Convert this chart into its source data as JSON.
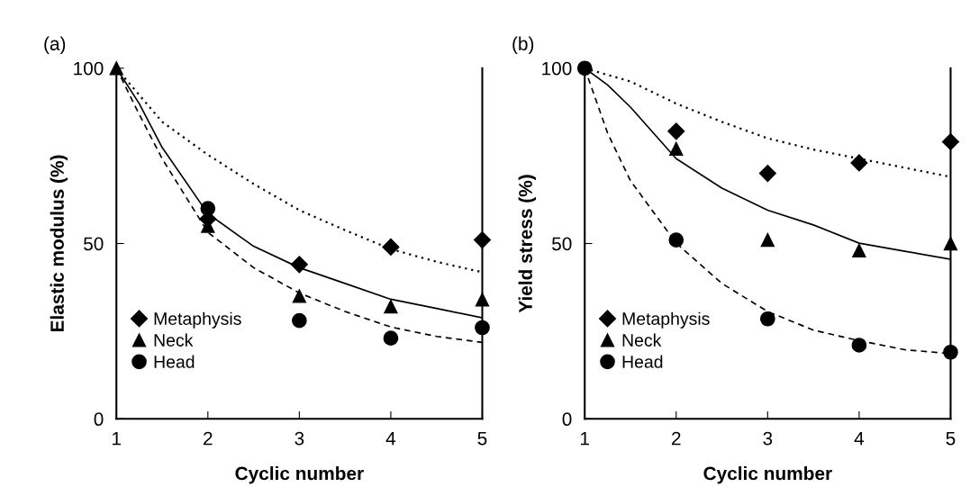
{
  "chart_data": [
    {
      "type": "scatter",
      "title": "(a)",
      "xlabel": "Cyclic number",
      "ylabel": "Elastic modulus (%)",
      "x": [
        1,
        2,
        3,
        4,
        5
      ],
      "xlim": [
        1,
        5
      ],
      "xticks": [
        1,
        2,
        3,
        4,
        5
      ],
      "ylim": [
        0,
        100
      ],
      "yticks": [
        0,
        50,
        100
      ],
      "grid": false,
      "legend": "bottom left",
      "series": [
        {
          "name": "Metaphysis",
          "color": "#000000",
          "marker": "diamond",
          "values": [
            null,
            57,
            44,
            49,
            51
          ]
        },
        {
          "name": "Neck",
          "color": "#000000",
          "marker": "triangle",
          "values": [
            100,
            55,
            35,
            32,
            34
          ]
        },
        {
          "name": "Head",
          "color": "#000000",
          "marker": "circle",
          "values": [
            null,
            60,
            28,
            23,
            26
          ]
        },
        {
          "type": "line",
          "color": "#000000",
          "line_style": "dotted",
          "marker": "none",
          "x": [
            1,
            1.5,
            2,
            2.5,
            3,
            3.5,
            4,
            4.5,
            5
          ],
          "values": [
            100,
            84.7,
            75.3,
            67,
            59.5,
            53.8,
            48.4,
            44.8,
            41.8
          ]
        },
        {
          "type": "line",
          "color": "#000000",
          "line_style": "solid",
          "marker": "none",
          "x": [
            1,
            1.25,
            1.5,
            2,
            2.5,
            3,
            3.5,
            4,
            4.5,
            5
          ],
          "values": [
            100,
            89.9,
            77.4,
            58.5,
            49.2,
            43.1,
            38.6,
            34.1,
            31.5,
            28.8
          ]
        },
        {
          "type": "line",
          "color": "#000000",
          "line_style": "dashed",
          "marker": "none",
          "x": [
            1,
            1.25,
            1.5,
            2,
            2.5,
            3,
            3.5,
            4,
            4.5,
            5
          ],
          "values": [
            100,
            86.8,
            74.2,
            53.2,
            43.1,
            35.9,
            30.6,
            26.2,
            23.5,
            21.8
          ]
        }
      ]
    },
    {
      "type": "scatter",
      "title": "(b)",
      "xlabel": "Cyclic number",
      "ylabel": "Yield stress (%)",
      "x": [
        1,
        2,
        3,
        4,
        5
      ],
      "xlim": [
        1,
        5
      ],
      "xticks": [
        1,
        2,
        3,
        4,
        5
      ],
      "ylim": [
        0,
        100
      ],
      "yticks": [
        0,
        50,
        100
      ],
      "grid": false,
      "legend": "bottom left",
      "series": [
        {
          "name": "Metaphysis",
          "color": "#000000",
          "marker": "diamond",
          "values": [
            null,
            82,
            70,
            73,
            79
          ]
        },
        {
          "name": "Neck",
          "color": "#000000",
          "marker": "triangle",
          "values": [
            null,
            77,
            51,
            48,
            50
          ]
        },
        {
          "name": "Head",
          "color": "#000000",
          "marker": "circle",
          "values": [
            100,
            51,
            28.5,
            21,
            19
          ]
        },
        {
          "type": "line",
          "color": "#000000",
          "line_style": "dotted",
          "marker": "none",
          "x": [
            1,
            1.5,
            2,
            2.5,
            3,
            3.5,
            4,
            4.5,
            5
          ],
          "values": [
            100,
            96.2,
            89.9,
            84.7,
            80,
            76.8,
            74.2,
            71.6,
            69
          ]
        },
        {
          "type": "line",
          "color": "#000000",
          "line_style": "solid",
          "marker": "none",
          "x": [
            1,
            1.25,
            1.5,
            2,
            2.5,
            3,
            3.5,
            4,
            4.5,
            5
          ],
          "values": [
            100,
            95.2,
            88.9,
            74.2,
            65.8,
            59.5,
            55.3,
            50.1,
            47.8,
            45.5
          ]
        },
        {
          "type": "line",
          "color": "#000000",
          "line_style": "dashed",
          "marker": "none",
          "x": [
            1,
            1.25,
            1.5,
            2,
            2.5,
            3,
            3.5,
            4,
            4.5,
            5
          ],
          "values": [
            100,
            81.5,
            67.9,
            50.1,
            38.6,
            30.6,
            25.3,
            22.3,
            19.7,
            18.6
          ]
        }
      ]
    }
  ]
}
